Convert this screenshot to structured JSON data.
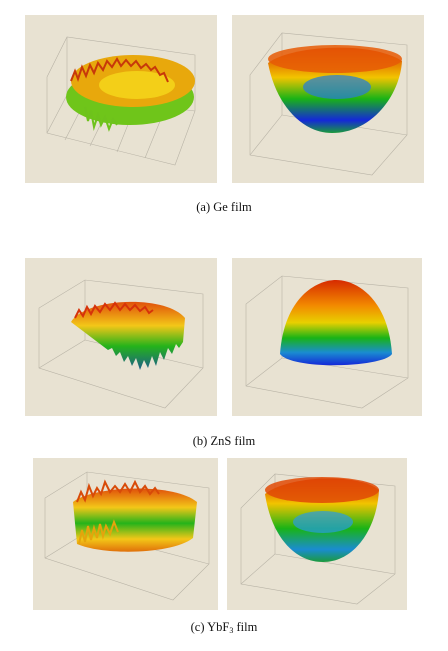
{
  "figure": {
    "rows": [
      {
        "caption": "(a) Ge film",
        "left_plot": {
          "shape": "rough-ring",
          "surface": "measured"
        },
        "right_plot": {
          "shape": "bowl",
          "surface": "fitted"
        }
      },
      {
        "caption": "(b) ZnS film",
        "left_plot": {
          "shape": "rough-dome",
          "surface": "measured"
        },
        "right_plot": {
          "shape": "dome",
          "surface": "fitted"
        }
      },
      {
        "caption_prefix": "(c) YbF",
        "caption_sub": "3",
        "caption_suffix": " film",
        "left_plot": {
          "shape": "rough-bowl",
          "surface": "measured"
        },
        "right_plot": {
          "shape": "bowl",
          "surface": "fitted"
        }
      }
    ],
    "colors": {
      "panel_bg": "#e8e2d2",
      "high": "#d62a00",
      "mid_high": "#f2c400",
      "mid": "#19b316",
      "low": "#1428d8"
    }
  }
}
